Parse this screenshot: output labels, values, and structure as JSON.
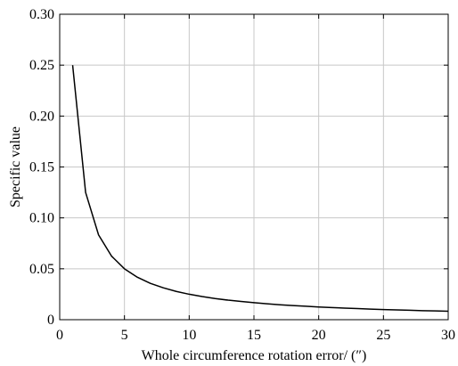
{
  "chart_data": {
    "type": "line",
    "title": "",
    "xlabel": "Whole circumference rotation error/ (″)",
    "ylabel": "Specific value",
    "xlim": [
      0,
      30
    ],
    "ylim": [
      0,
      0.3
    ],
    "xticks": [
      0,
      5,
      10,
      15,
      20,
      25,
      30
    ],
    "yticks": [
      0,
      0.05,
      0.1,
      0.15,
      0.2,
      0.25,
      0.3
    ],
    "xtick_labels": [
      "0",
      "5",
      "10",
      "15",
      "20",
      "25",
      "30"
    ],
    "ytick_labels": [
      "0",
      "0.05",
      "0.10",
      "0.15",
      "0.20",
      "0.25",
      "0.30"
    ],
    "grid": true,
    "legend": "none",
    "series": [
      {
        "x": [
          1,
          2,
          3,
          4,
          5,
          6,
          7,
          8,
          9,
          10,
          11,
          12,
          13,
          14,
          15,
          16,
          17,
          18,
          19,
          20,
          21,
          22,
          23,
          24,
          25,
          26,
          27,
          28,
          29,
          30
        ],
        "values": [
          0.25,
          0.125,
          0.0833,
          0.0625,
          0.05,
          0.0417,
          0.0357,
          0.0313,
          0.0278,
          0.025,
          0.0227,
          0.0208,
          0.0192,
          0.0179,
          0.0167,
          0.0156,
          0.0147,
          0.0139,
          0.0132,
          0.0125,
          0.0119,
          0.0114,
          0.0109,
          0.0104,
          0.01,
          0.0096,
          0.0093,
          0.0089,
          0.0086,
          0.0083
        ],
        "color": "#000000"
      }
    ]
  }
}
